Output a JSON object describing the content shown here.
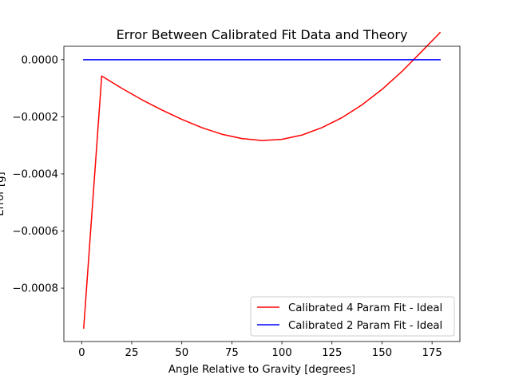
{
  "chart_data": {
    "type": "line",
    "title": "Error Between Calibrated Fit Data and Theory",
    "xlabel": "Angle Relative to Gravity [degrees]",
    "ylabel": "Error [g]",
    "xlim": [
      -8.9,
      188.9
    ],
    "ylim": [
      -0.000987,
      4.7e-05
    ],
    "xticks": [
      0,
      25,
      50,
      75,
      100,
      125,
      150,
      175
    ],
    "xtick_labels": [
      "0",
      "25",
      "50",
      "75",
      "100",
      "125",
      "150",
      "175"
    ],
    "yticks": [
      0,
      -0.0002,
      -0.0004,
      -0.0006,
      -0.0008
    ],
    "ytick_labels": [
      "0.0000",
      "−0.0002",
      "−0.0004",
      "−0.0006",
      "−0.0008"
    ],
    "grid": false,
    "legend_position": "lower-right",
    "series": [
      {
        "name": "Calibrated 4 Param Fit - Ideal",
        "color": "#ff0000",
        "x": [
          1,
          10,
          20,
          30,
          40,
          50,
          60,
          70,
          80,
          90,
          100,
          110,
          120,
          130,
          140,
          150,
          160,
          170,
          179
        ],
        "y": [
          -0.00094,
          -5.7e-05,
          -0.0001,
          -0.00014,
          -0.000176,
          -0.000209,
          -0.000238,
          -0.000261,
          -0.000276,
          -0.000283,
          -0.000279,
          -0.000264,
          -0.000238,
          -0.000203,
          -0.000158,
          -0.000104,
          -4.1e-05,
          3e-05,
          9.5e-05
        ]
      },
      {
        "name": "Calibrated 2 Param Fit - Ideal",
        "color": "#0000ff",
        "x": [
          1,
          179
        ],
        "y": [
          0,
          0
        ]
      }
    ]
  }
}
